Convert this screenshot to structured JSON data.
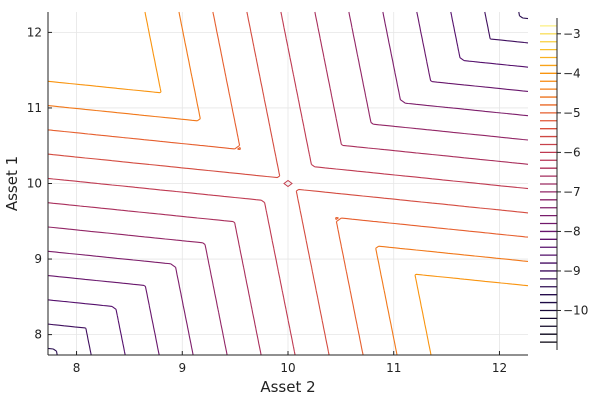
{
  "chart_data": {
    "type": "contour",
    "title": "",
    "xlabel": "Asset 2",
    "ylabel": "Asset 1",
    "xlim": [
      7.73,
      12.27
    ],
    "ylim": [
      7.73,
      12.27
    ],
    "xticks": [
      8,
      9,
      10,
      11,
      12
    ],
    "yticks": [
      8,
      9,
      10,
      11,
      12
    ],
    "grid": true,
    "colorbar": {
      "range": [
        -11.0,
        -2.6
      ],
      "ticks": [
        -3,
        -4,
        -5,
        -6,
        -7,
        -8,
        -9,
        -10
      ],
      "tick_labels": [
        "−3",
        "−4",
        "−5",
        "−6",
        "−7",
        "−8",
        "−9",
        "−10"
      ],
      "levels": [
        -2.8,
        -3.0,
        -3.2,
        -3.4,
        -3.6,
        -3.8,
        -4.0,
        -4.2,
        -4.4,
        -4.6,
        -4.8,
        -5.0,
        -5.2,
        -5.4,
        -5.6,
        -5.8,
        -6.0,
        -6.2,
        -6.4,
        -6.6,
        -6.8,
        -7.0,
        -7.2,
        -7.4,
        -7.6,
        -7.8,
        -8.0,
        -8.2,
        -8.4,
        -8.6,
        -8.8,
        -9.0,
        -9.2,
        -9.4,
        -9.6,
        -9.8,
        -10.0,
        -10.2,
        -10.4,
        -10.6,
        -10.8
      ]
    },
    "contour_levels_drawn": [
      -4.0,
      -4.5,
      -5.0,
      -5.5,
      -6.0,
      -6.5,
      -7.0,
      -7.5,
      -8.0,
      -8.5,
      -9.0,
      -9.5,
      -10.0
    ]
  }
}
